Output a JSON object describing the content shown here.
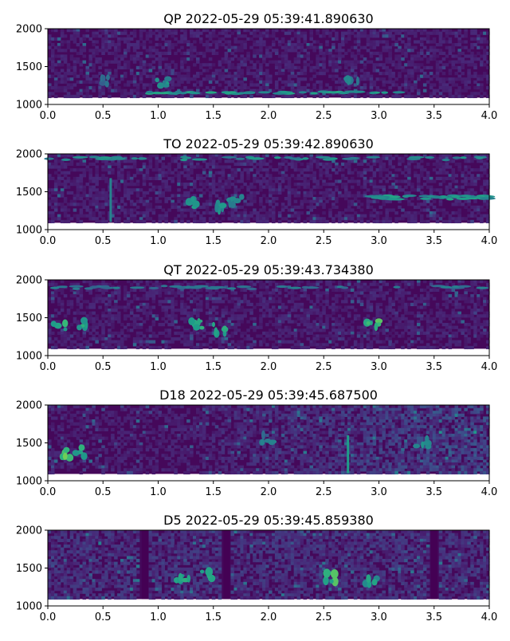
{
  "chart_data": [
    {
      "type": "heatmap",
      "title": "QP 2022-05-29 05:39:41.890630",
      "xlim": [
        0.0,
        4.0
      ],
      "ylim": [
        1000,
        2000
      ],
      "xticks": [
        "0.0",
        "0.5",
        "1.0",
        "1.5",
        "2.0",
        "2.5",
        "3.0",
        "3.5",
        "4.0"
      ],
      "yticks": [
        "1000",
        "1500",
        "2000"
      ],
      "colormap": "viridis",
      "features": [
        {
          "kind": "band",
          "t0": 0.9,
          "t1": 3.2,
          "f0": 1140,
          "f1": 1170,
          "level": 0.6
        },
        {
          "kind": "blob",
          "t": 1.05,
          "f": 1300,
          "level": 0.55
        },
        {
          "kind": "blob",
          "t": 2.75,
          "f": 1350,
          "level": 0.5
        },
        {
          "kind": "blob",
          "t": 0.5,
          "f": 1300,
          "level": 0.4
        }
      ]
    },
    {
      "type": "heatmap",
      "title": "TO 2022-05-29 05:39:42.890630",
      "xlim": [
        0.0,
        4.0
      ],
      "ylim": [
        1000,
        2000
      ],
      "xticks": [
        "0.0",
        "0.5",
        "1.0",
        "1.5",
        "2.0",
        "2.5",
        "3.0",
        "3.5",
        "4.0"
      ],
      "yticks": [
        "1000",
        "1500",
        "2000"
      ],
      "colormap": "viridis",
      "features": [
        {
          "kind": "band",
          "t0": 0.0,
          "t1": 4.0,
          "f0": 1920,
          "f1": 1960,
          "level": 0.55
        },
        {
          "kind": "vline",
          "t": 0.57,
          "f0": 1100,
          "f1": 1680,
          "level": 0.45
        },
        {
          "kind": "band",
          "t0": 2.9,
          "t1": 4.0,
          "f0": 1400,
          "f1": 1450,
          "level": 0.6
        },
        {
          "kind": "blob",
          "t": 1.3,
          "f": 1350,
          "level": 0.6
        },
        {
          "kind": "blob",
          "t": 1.55,
          "f": 1300,
          "level": 0.55
        },
        {
          "kind": "blob",
          "t": 1.7,
          "f": 1380,
          "level": 0.5
        }
      ]
    },
    {
      "type": "heatmap",
      "title": "QT 2022-05-29 05:39:43.734380",
      "xlim": [
        0.0,
        4.0
      ],
      "ylim": [
        1000,
        2000
      ],
      "xticks": [
        "0.0",
        "0.5",
        "1.0",
        "1.5",
        "2.0",
        "2.5",
        "3.0",
        "3.5",
        "4.0"
      ],
      "yticks": [
        "1000",
        "1500",
        "2000"
      ],
      "colormap": "viridis",
      "features": [
        {
          "kind": "band",
          "t0": 0.0,
          "t1": 4.0,
          "f0": 1880,
          "f1": 1920,
          "level": 0.45
        },
        {
          "kind": "blob",
          "t": 0.1,
          "f": 1400,
          "level": 0.7
        },
        {
          "kind": "blob",
          "t": 0.3,
          "f": 1420,
          "level": 0.65
        },
        {
          "kind": "blob",
          "t": 1.35,
          "f": 1400,
          "level": 0.65
        },
        {
          "kind": "blob",
          "t": 1.55,
          "f": 1350,
          "level": 0.65
        },
        {
          "kind": "blob",
          "t": 2.95,
          "f": 1410,
          "level": 0.75
        }
      ]
    },
    {
      "type": "heatmap",
      "title": "D18 2022-05-29 05:39:45.687500",
      "xlim": [
        0.0,
        4.0
      ],
      "ylim": [
        1000,
        2000
      ],
      "xticks": [
        "0.0",
        "0.5",
        "1.0",
        "1.5",
        "2.0",
        "2.5",
        "3.0",
        "3.5",
        "4.0"
      ],
      "yticks": [
        "1000",
        "1500",
        "2000"
      ],
      "colormap": "viridis",
      "features": [
        {
          "kind": "blob",
          "t": 0.15,
          "f": 1350,
          "level": 0.8
        },
        {
          "kind": "blob",
          "t": 0.3,
          "f": 1380,
          "level": 0.65
        },
        {
          "kind": "vline",
          "t": 2.72,
          "f0": 1100,
          "f1": 1600,
          "level": 0.55
        },
        {
          "kind": "blob",
          "t": 3.4,
          "f": 1500,
          "level": 0.55
        },
        {
          "kind": "blob",
          "t": 2.0,
          "f": 1550,
          "level": 0.45
        }
      ]
    },
    {
      "type": "heatmap",
      "title": "D5 2022-05-29 05:39:45.859380",
      "xlim": [
        0.0,
        4.0
      ],
      "ylim": [
        1000,
        2000
      ],
      "xticks": [
        "0.0",
        "0.5",
        "1.0",
        "1.5",
        "2.0",
        "2.5",
        "3.0",
        "3.5",
        "4.0"
      ],
      "yticks": [
        "1000",
        "1500",
        "2000"
      ],
      "colormap": "viridis",
      "features": [
        {
          "kind": "dark",
          "t": 0.88,
          "level": 0.0
        },
        {
          "kind": "dark",
          "t": 1.62,
          "level": 0.0
        },
        {
          "kind": "dark",
          "t": 3.5,
          "level": 0.0
        },
        {
          "kind": "blob",
          "t": 1.22,
          "f": 1390,
          "level": 0.65
        },
        {
          "kind": "blob",
          "t": 1.45,
          "f": 1420,
          "level": 0.65
        },
        {
          "kind": "blob",
          "t": 2.55,
          "f": 1380,
          "level": 0.75
        },
        {
          "kind": "blob",
          "t": 2.92,
          "f": 1320,
          "level": 0.6
        }
      ]
    }
  ]
}
